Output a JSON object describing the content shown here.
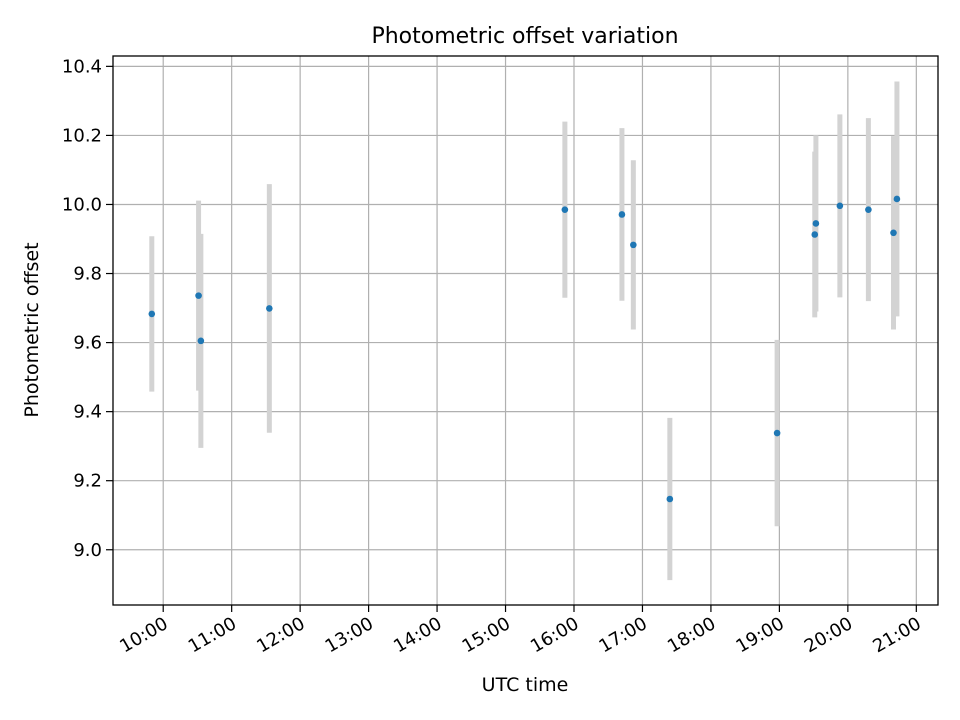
{
  "chart_data": {
    "type": "scatter",
    "title": "Photometric offset variation",
    "xlabel": "UTC time",
    "ylabel": "Photometric offset",
    "xlim": [
      "09:16",
      "21:19"
    ],
    "ylim": [
      8.84,
      10.43
    ],
    "grid": true,
    "x_ticks": [
      "10:00",
      "11:00",
      "12:00",
      "13:00",
      "14:00",
      "15:00",
      "16:00",
      "17:00",
      "18:00",
      "19:00",
      "20:00",
      "21:00"
    ],
    "y_ticks": [
      "9.0",
      "9.2",
      "9.4",
      "9.6",
      "9.8",
      "10.0",
      "10.2",
      "10.4"
    ],
    "errorbar_color": "#d3d3d3",
    "marker_color": "#1f77b4",
    "series": [
      {
        "points": [
          {
            "x": "09:50",
            "y": 9.683,
            "err": 0.225
          },
          {
            "x": "10:31",
            "y": 9.736,
            "err": 0.275
          },
          {
            "x": "10:33",
            "y": 9.605,
            "err": 0.31
          },
          {
            "x": "11:33",
            "y": 9.699,
            "err": 0.36
          },
          {
            "x": "15:52",
            "y": 9.985,
            "err": 0.255
          },
          {
            "x": "16:42",
            "y": 9.971,
            "err": 0.25
          },
          {
            "x": "16:52",
            "y": 9.883,
            "err": 0.245
          },
          {
            "x": "17:24",
            "y": 9.147,
            "err": 0.235
          },
          {
            "x": "18:58",
            "y": 9.338,
            "err": 0.27
          },
          {
            "x": "19:31",
            "y": 9.913,
            "err": 0.24
          },
          {
            "x": "19:32",
            "y": 9.945,
            "err": 0.255
          },
          {
            "x": "19:53",
            "y": 9.996,
            "err": 0.265
          },
          {
            "x": "20:18",
            "y": 9.985,
            "err": 0.265
          },
          {
            "x": "20:40",
            "y": 9.918,
            "err": 0.28
          },
          {
            "x": "20:43",
            "y": 10.016,
            "err": 0.34
          }
        ]
      }
    ]
  }
}
